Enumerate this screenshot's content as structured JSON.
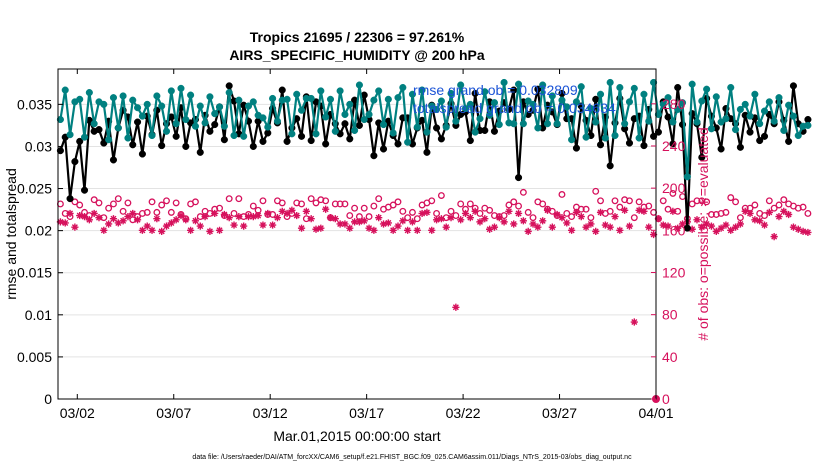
{
  "chart_data": {
    "type": "line",
    "title": "Tropics 21695 / 22306 = 97.261%",
    "subtitle": "AIRS_SPECIFIC_HUMIDITY @ 200 hPa",
    "xlabel": "Mar.01,2015 00:00:00 start",
    "ylabel": "rmse and totalspread",
    "ylabel_right": "# of obs: o=possible; ∗=evaluated",
    "footer": "data file: /Users/raeder/DAI/ATM_forcXX/CAM6_setup/f.e21.FHIST_BGC.f09_025.CAM6assim.011/Diags_NTrS_2015-03/obs_diag_output.nc",
    "x_ticks": [
      "03/02",
      "03/07",
      "03/12",
      "03/17",
      "03/22",
      "03/27",
      "04/01"
    ],
    "x_tick_days": [
      1,
      6,
      11,
      16,
      21,
      26,
      31
    ],
    "xlim": [
      0,
      31
    ],
    "y_ticks": [
      "0",
      "0.005",
      "0.01",
      "0.015",
      "0.02",
      "0.025",
      "0.03",
      "0.035"
    ],
    "ylim": [
      0,
      0.0392
    ],
    "y2_ticks": [
      "0",
      "40",
      "80",
      "120",
      "160",
      "200",
      "240",
      "280"
    ],
    "y2lim": [
      0,
      313
    ],
    "annotations": [
      "rmse grand ob = 0.032809",
      "totalspread grand ob = 0.034634"
    ],
    "colors": {
      "rmse": "#000000",
      "totalspread": "#008080",
      "obs": "#d6115c",
      "annotation": "#1a53d6"
    },
    "series": [
      {
        "name": "rmse",
        "marker": "filled-circle",
        "x_start_day": 0.125,
        "x_step_day": 0.25,
        "values": [
          0.0295,
          0.0311,
          0.0238,
          0.0282,
          0.0306,
          0.0248,
          0.0331,
          0.0318,
          0.032,
          0.0304,
          0.033,
          0.0284,
          0.0322,
          0.0343,
          0.0335,
          0.0302,
          0.0329,
          0.0291,
          0.0336,
          0.0314,
          0.0343,
          0.0301,
          0.0327,
          0.0335,
          0.0312,
          0.0346,
          0.03,
          0.0328,
          0.0332,
          0.0293,
          0.0337,
          0.0318,
          0.0326,
          0.0347,
          0.0308,
          0.0372,
          0.0354,
          0.0315,
          0.0349,
          0.033,
          0.03,
          0.033,
          0.0306,
          0.0316,
          0.0345,
          0.0328,
          0.0367,
          0.0306,
          0.0322,
          0.0333,
          0.0312,
          0.0359,
          0.0307,
          0.0353,
          0.0348,
          0.0303,
          0.0338,
          0.0327,
          0.0315,
          0.0327,
          0.0309,
          0.0355,
          0.0325,
          0.0361,
          0.0332,
          0.0289,
          0.0328,
          0.0297,
          0.033,
          0.0313,
          0.0303,
          0.0334,
          0.0334,
          0.0303,
          0.0322,
          0.0331,
          0.0293,
          0.0349,
          0.0322,
          0.0309,
          0.0325,
          0.0351,
          0.0325,
          0.0338,
          0.0341,
          0.0307,
          0.0363,
          0.0319,
          0.0319,
          0.0353,
          0.0318,
          0.0342,
          0.0352,
          0.0344,
          0.0367,
          0.0263,
          0.0353,
          0.0338,
          0.0343,
          0.0368,
          0.0322,
          0.0349,
          0.0341,
          0.0326,
          0.0363,
          0.0333,
          0.0333,
          0.0298,
          0.0348,
          0.0331,
          0.0313,
          0.0356,
          0.0302,
          0.0335,
          0.0277,
          0.0328,
          0.0357,
          0.0321,
          0.0304,
          0.0333,
          0.0336,
          0.0301,
          0.0344,
          0.0312,
          0.0317,
          0.0353,
          0.0335,
          0.0303,
          0.037,
          0.0326,
          0.0203,
          0.0339,
          0.0327,
          0.0287,
          0.0357,
          0.0336,
          0.0322,
          0.0297,
          0.0345,
          0.0333,
          0.0327,
          0.0299,
          0.0337,
          0.0317,
          0.0334,
          0.0307,
          0.0312,
          0.0338,
          0.0327,
          0.0353,
          0.0331,
          0.0306,
          0.0372,
          0.0327,
          0.0318,
          0.0332
        ]
      },
      {
        "name": "totalspread",
        "marker": "filled-circle",
        "x_start_day": 0.125,
        "x_step_day": 0.25,
        "values": [
          0.0332,
          0.0367,
          0.0314,
          0.0353,
          0.0356,
          0.0311,
          0.0364,
          0.0327,
          0.0353,
          0.035,
          0.0308,
          0.0358,
          0.0322,
          0.036,
          0.031,
          0.0355,
          0.0346,
          0.0336,
          0.035,
          0.0313,
          0.036,
          0.0348,
          0.0318,
          0.0366,
          0.0327,
          0.0369,
          0.0332,
          0.0361,
          0.0324,
          0.0348,
          0.0328,
          0.0359,
          0.0339,
          0.0347,
          0.0324,
          0.0364,
          0.0313,
          0.0355,
          0.0312,
          0.0348,
          0.0353,
          0.0337,
          0.0334,
          0.0323,
          0.0357,
          0.033,
          0.0355,
          0.0356,
          0.0315,
          0.0362,
          0.0343,
          0.0357,
          0.0357,
          0.0315,
          0.0366,
          0.0335,
          0.0356,
          0.0318,
          0.0366,
          0.0338,
          0.035,
          0.0319,
          0.0373,
          0.0332,
          0.0338,
          0.0355,
          0.0366,
          0.0326,
          0.0356,
          0.0316,
          0.0358,
          0.037,
          0.0305,
          0.0362,
          0.0323,
          0.0367,
          0.0317,
          0.0348,
          0.0344,
          0.0354,
          0.0323,
          0.0363,
          0.033,
          0.0373,
          0.0345,
          0.035,
          0.0317,
          0.0333,
          0.0365,
          0.0337,
          0.0352,
          0.0326,
          0.0376,
          0.0328,
          0.0327,
          0.0374,
          0.0327,
          0.0354,
          0.035,
          0.0322,
          0.0373,
          0.0327,
          0.036,
          0.0327,
          0.0355,
          0.0347,
          0.0308,
          0.0353,
          0.0371,
          0.0311,
          0.0345,
          0.0329,
          0.0362,
          0.031,
          0.0376,
          0.0313,
          0.037,
          0.0327,
          0.0353,
          0.0369,
          0.031,
          0.0362,
          0.033,
          0.0376,
          0.0338,
          0.035,
          0.0358,
          0.0329,
          0.0344,
          0.0352,
          0.0264,
          0.0374,
          0.0329,
          0.0354,
          0.0368,
          0.0321,
          0.0359,
          0.0329,
          0.0333,
          0.037,
          0.032,
          0.0344,
          0.035,
          0.0336,
          0.0362,
          0.0327,
          0.0342,
          0.0353,
          0.033,
          0.0358,
          0.0319,
          0.0349,
          0.0336,
          0.0313,
          0.0324,
          0.0325
        ]
      },
      {
        "name": "obs possible",
        "marker": "open-circle",
        "axis": "right",
        "x_start_day": 0.125,
        "x_step_day": 0.25,
        "values": [
          185,
          176,
          173,
          187,
          184,
          177,
          174,
          189,
          186,
          172,
          181,
          185,
          190,
          178,
          186,
          170,
          173,
          176,
          177,
          187,
          177,
          184,
          188,
          177,
          186,
          175,
          171,
          185,
          187,
          173,
          178,
          176,
          180,
          181,
          174,
          190,
          176,
          190,
          173,
          175,
          183,
          179,
          188,
          175,
          175,
          188,
          186,
          173,
          176,
          186,
          185,
          171,
          190,
          186,
          189,
          188,
          172,
          185,
          185,
          185,
          174,
          181,
          173,
          181,
          173,
          183,
          190,
          180,
          182,
          184,
          187,
          178,
          172,
          177,
          171,
          184,
          186,
          188,
          176,
          193,
          172,
          178,
          174,
          185,
          180,
          185,
          181,
          176,
          181,
          179,
          174,
          173,
          174,
          184,
          187,
          183,
          196,
          177,
          172,
          187,
          185,
          180,
          178,
          174,
          194,
          176,
          173,
          182,
          180,
          180,
          172,
          197,
          188,
          176,
          178,
          188,
          182,
          189,
          188,
          172,
          187,
          182,
          183,
          177,
          171,
          188,
          180,
          195,
          178,
          192,
          171,
          185,
          188,
          188,
          187,
          175,
          175,
          176,
          177,
          191,
          187,
          172,
          181,
          181,
          184,
          176,
          174,
          188,
          181,
          184,
          189,
          185,
          183,
          181,
          182,
          176
        ]
      },
      {
        "name": "obs evaluated",
        "marker": "asterisk",
        "axis": "right",
        "x_start_day": 0.125,
        "x_step_day": 0.25,
        "values": [
          168,
          167,
          176,
          163,
          174,
          173,
          170,
          176,
          172,
          160,
          166,
          171,
          167,
          169,
          173,
          176,
          170,
          160,
          164,
          160,
          171,
          159,
          164,
          167,
          170,
          174,
          170,
          160,
          169,
          164,
          173,
          159,
          176,
          160,
          175,
          172,
          165,
          173,
          164,
          173,
          173,
          174,
          165,
          176,
          165,
          172,
          178,
          176,
          179,
          174,
          162,
          178,
          171,
          161,
          162,
          180,
          172,
          171,
          166,
          166,
          162,
          168,
          168,
          169,
          162,
          160,
          172,
          166,
          167,
          160,
          164,
          169,
          160,
          168,
          160,
          176,
          177,
          160,
          170,
          171,
          163,
          172,
          87,
          170,
          176,
          172,
          178,
          168,
          171,
          161,
          163,
          172,
          168,
          178,
          166,
          176,
          169,
          159,
          166,
          163,
          169,
          179,
          163,
          175,
          172,
          167,
          160,
          177,
          173,
          163,
          166,
          159,
          177,
          165,
          163,
          173,
          160,
          179,
          164,
          73,
          179,
          178,
          163,
          156,
          171,
          165,
          164,
          178,
          162,
          166,
          168,
          161,
          170,
          163,
          166,
          164,
          159,
          162,
          165,
          160,
          163,
          166,
          178,
          176,
          170,
          169,
          165,
          177,
          154,
          173,
          178,
          175,
          163,
          161,
          159,
          158
        ]
      }
    ]
  }
}
